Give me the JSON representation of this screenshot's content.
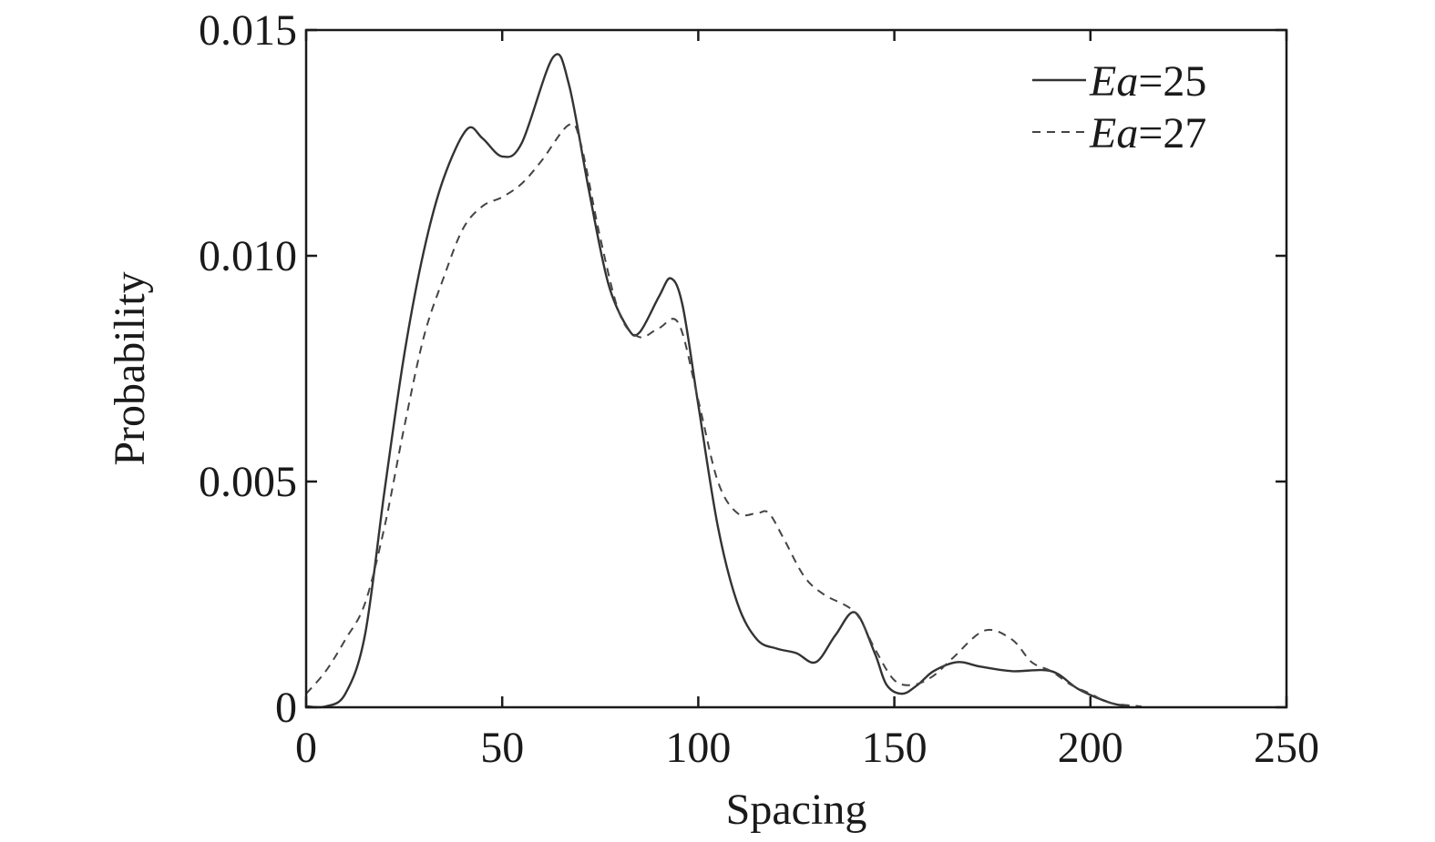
{
  "chart_data": {
    "type": "line",
    "title": "",
    "xlabel": "Spacing",
    "ylabel": "Probability",
    "xlim": [
      0,
      250
    ],
    "ylim": [
      0,
      0.015
    ],
    "xticks": [
      0,
      50,
      100,
      150,
      200,
      250
    ],
    "xtick_labels": [
      "0",
      "50",
      "100",
      "150",
      "200",
      "250"
    ],
    "yticks": [
      0,
      0.005,
      0.01,
      0.015
    ],
    "ytick_labels": [
      "0",
      "0.005",
      "0.010",
      "0.015"
    ],
    "grid": false,
    "legend_position": "top-right",
    "series": [
      {
        "name_var": "Ea",
        "name_val": "=25",
        "style": "solid",
        "color": "#333333",
        "x": [
          0,
          5,
          10,
          15,
          20,
          25,
          30,
          35,
          41,
          45,
          50,
          55,
          63,
          67,
          72,
          77,
          82,
          85,
          90,
          93,
          96,
          100,
          105,
          110,
          115,
          120,
          125,
          130,
          135,
          140,
          145,
          148,
          152,
          156,
          160,
          166,
          172,
          180,
          190,
          197,
          205,
          210
        ],
        "y": [
          0,
          0.0,
          0.0003,
          0.0016,
          0.0048,
          0.0078,
          0.0101,
          0.0117,
          0.0128,
          0.0126,
          0.0122,
          0.0125,
          0.0144,
          0.0138,
          0.0115,
          0.0094,
          0.0084,
          0.0083,
          0.0091,
          0.0095,
          0.0089,
          0.0067,
          0.004,
          0.0023,
          0.0015,
          0.0013,
          0.0012,
          0.001,
          0.0016,
          0.0021,
          0.0012,
          0.0005,
          0.0003,
          0.0005,
          0.0008,
          0.001,
          0.0009,
          0.0008,
          0.0008,
          0.0004,
          0.0001,
          0.0
        ]
      },
      {
        "name_var": "Ea",
        "name_val": "=27",
        "style": "dashed",
        "color": "#444444",
        "x": [
          0,
          5,
          10,
          15,
          20,
          25,
          30,
          35,
          40,
          45,
          50,
          55,
          60,
          67,
          70,
          75,
          80,
          85,
          90,
          95,
          100,
          105,
          110,
          115,
          118,
          122,
          127,
          132,
          140,
          145,
          150,
          155,
          160,
          165,
          173,
          180,
          185,
          190,
          195,
          200,
          205,
          213
        ],
        "y": [
          0.0003,
          0.0008,
          0.0015,
          0.0023,
          0.004,
          0.0062,
          0.0082,
          0.0095,
          0.0106,
          0.0111,
          0.0113,
          0.0116,
          0.0121,
          0.0129,
          0.0125,
          0.0104,
          0.0087,
          0.0082,
          0.0084,
          0.0085,
          0.0068,
          0.005,
          0.0043,
          0.0043,
          0.0043,
          0.0037,
          0.0029,
          0.0025,
          0.0021,
          0.0013,
          0.0006,
          0.0005,
          0.0007,
          0.0011,
          0.0017,
          0.0015,
          0.001,
          0.0008,
          0.0005,
          0.0003,
          0.0001,
          0.0
        ]
      }
    ]
  }
}
